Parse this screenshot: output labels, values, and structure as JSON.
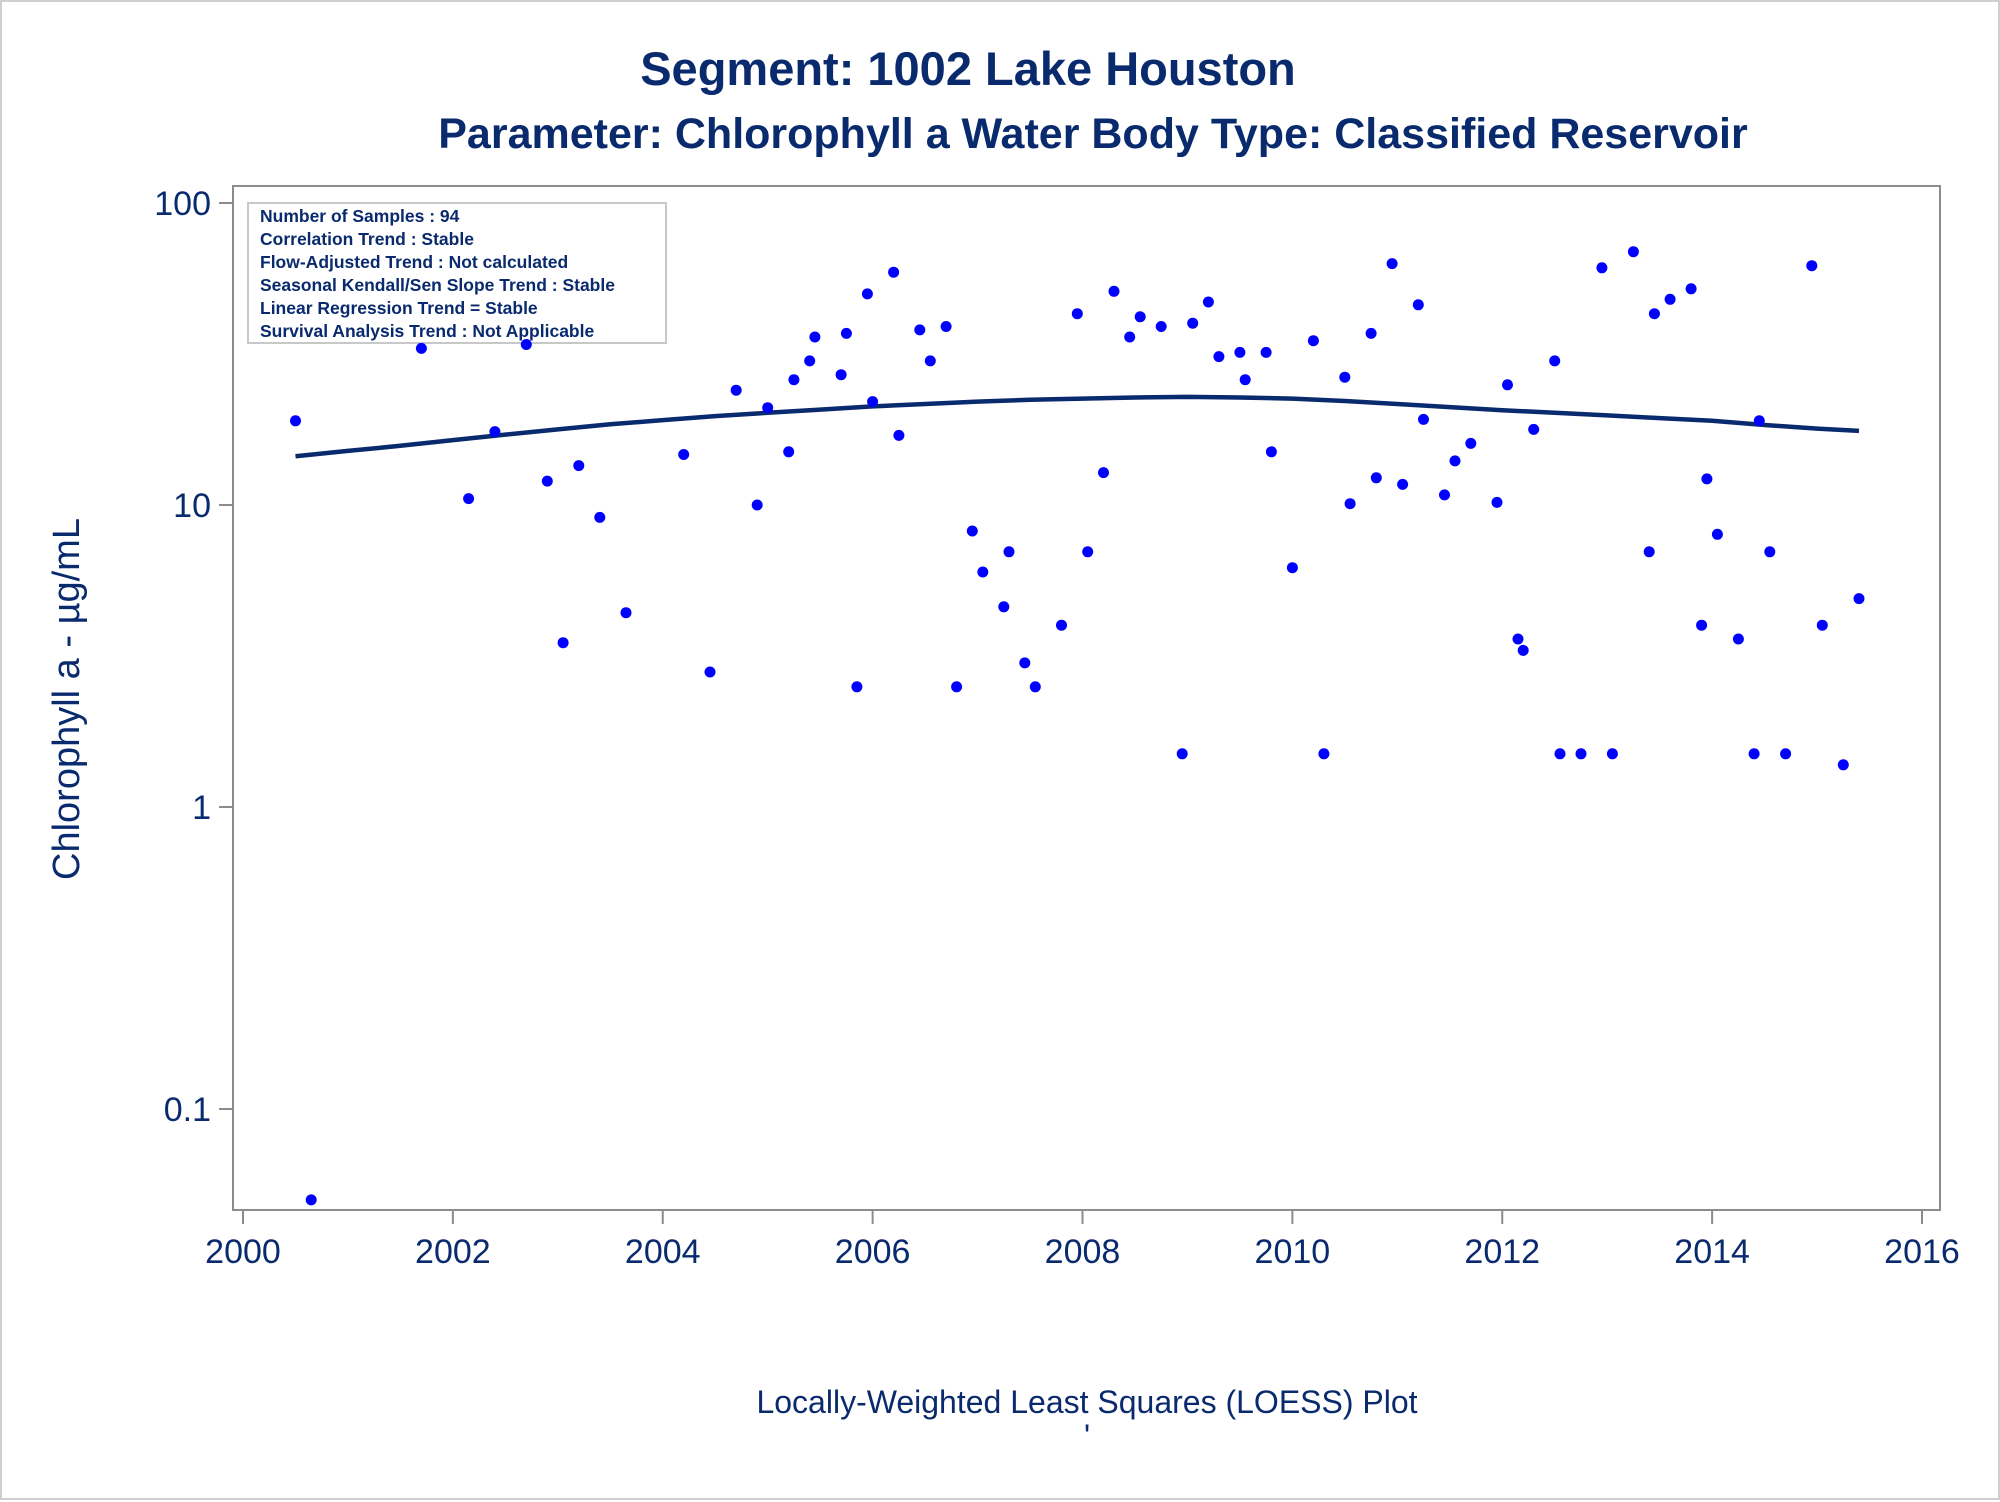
{
  "chart_data": {
    "type": "scatter",
    "title": "Segment: 1002  Lake Houston",
    "subtitle": "Parameter: Chlorophyll a   Water Body Type: Classified Reservoir",
    "xlabel": "",
    "ylabel": "Chlorophyll a -  µg/mL",
    "footnote": "Locally-Weighted Least Squares (LOESS) Plot",
    "footnote2": "'",
    "y_scale": "log",
    "xlim": [
      2000,
      2016
    ],
    "ylim": [
      0.05,
      100
    ],
    "x_ticks": [
      2000,
      2002,
      2004,
      2006,
      2008,
      2010,
      2012,
      2014,
      2016
    ],
    "x_tick_labels": [
      "2000",
      "2002",
      "2004",
      "2006",
      "2008",
      "2010",
      "2012",
      "2014",
      "2016"
    ],
    "y_ticks": [
      0.1,
      1,
      10,
      100
    ],
    "y_tick_labels": [
      "0.1",
      "1",
      "10",
      "100"
    ],
    "grid": false,
    "stats_box": [
      "Number of Samples : 94",
      "Correlation Trend : Stable",
      "Flow-Adjusted Trend : Not calculated",
      "Seasonal Kendall/Sen Slope Trend : Stable",
      "Linear Regression Trend = Stable",
      "Survival Analysis Trend : Not Applicable"
    ],
    "stats_box_placement": "top-left",
    "colors": {
      "points": "#0000ff",
      "loess": "#0a2a6e",
      "text": "#0a2a6e",
      "axes": "#8c8c8c"
    },
    "points": [
      [
        2000.5,
        19
      ],
      [
        2000.65,
        0.05
      ],
      [
        2001.7,
        33
      ],
      [
        2002.15,
        10.5
      ],
      [
        2002.4,
        17.5
      ],
      [
        2002.7,
        34
      ],
      [
        2002.9,
        12
      ],
      [
        2003.05,
        3.5
      ],
      [
        2003.2,
        13.5
      ],
      [
        2003.4,
        9.1
      ],
      [
        2003.65,
        4.4
      ],
      [
        2004.2,
        14.7
      ],
      [
        2004.45,
        2.8
      ],
      [
        2004.7,
        24
      ],
      [
        2004.9,
        10
      ],
      [
        2005.0,
        21
      ],
      [
        2005.2,
        15
      ],
      [
        2005.25,
        26
      ],
      [
        2005.4,
        30
      ],
      [
        2005.45,
        36
      ],
      [
        2005.7,
        27
      ],
      [
        2005.75,
        37
      ],
      [
        2005.85,
        2.5
      ],
      [
        2005.95,
        50
      ],
      [
        2006.0,
        22
      ],
      [
        2006.2,
        59
      ],
      [
        2006.25,
        17
      ],
      [
        2006.45,
        38
      ],
      [
        2006.55,
        30
      ],
      [
        2006.7,
        39
      ],
      [
        2006.8,
        2.5
      ],
      [
        2006.95,
        8.2
      ],
      [
        2007.05,
        6.0
      ],
      [
        2007.25,
        4.6
      ],
      [
        2007.3,
        7.0
      ],
      [
        2007.45,
        3.0
      ],
      [
        2007.55,
        2.5
      ],
      [
        2007.8,
        4.0
      ],
      [
        2007.95,
        43
      ],
      [
        2008.05,
        7.0
      ],
      [
        2008.2,
        12.8
      ],
      [
        2008.3,
        51
      ],
      [
        2008.45,
        36
      ],
      [
        2008.55,
        42
      ],
      [
        2008.75,
        39
      ],
      [
        2008.95,
        1.5
      ],
      [
        2009.05,
        40
      ],
      [
        2009.2,
        47
      ],
      [
        2009.3,
        31
      ],
      [
        2009.5,
        32
      ],
      [
        2009.55,
        26
      ],
      [
        2009.75,
        32
      ],
      [
        2009.8,
        15
      ],
      [
        2010.0,
        6.2
      ],
      [
        2010.2,
        35
      ],
      [
        2010.3,
        1.5
      ],
      [
        2010.5,
        26.5
      ],
      [
        2010.55,
        10.1
      ],
      [
        2010.75,
        37
      ],
      [
        2010.8,
        12.3
      ],
      [
        2010.95,
        63
      ],
      [
        2011.05,
        11.7
      ],
      [
        2011.2,
        46
      ],
      [
        2011.25,
        19.2
      ],
      [
        2011.45,
        10.8
      ],
      [
        2011.55,
        14
      ],
      [
        2011.7,
        16
      ],
      [
        2011.95,
        10.2
      ],
      [
        2012.05,
        25
      ],
      [
        2012.15,
        3.6
      ],
      [
        2012.2,
        3.3
      ],
      [
        2012.3,
        17.8
      ],
      [
        2012.5,
        30
      ],
      [
        2012.55,
        1.5
      ],
      [
        2012.75,
        1.5
      ],
      [
        2012.95,
        61
      ],
      [
        2013.05,
        1.5
      ],
      [
        2013.25,
        69
      ],
      [
        2013.4,
        7.0
      ],
      [
        2013.45,
        43
      ],
      [
        2013.6,
        48
      ],
      [
        2013.8,
        52
      ],
      [
        2013.9,
        4.0
      ],
      [
        2013.95,
        12.2
      ],
      [
        2014.05,
        8.0
      ],
      [
        2014.25,
        3.6
      ],
      [
        2014.4,
        1.5
      ],
      [
        2014.45,
        19
      ],
      [
        2014.55,
        7.0
      ],
      [
        2014.7,
        1.5
      ],
      [
        2014.95,
        62
      ],
      [
        2015.05,
        4.0
      ],
      [
        2015.25,
        1.38
      ],
      [
        2015.4,
        4.9
      ]
    ],
    "loess_curve": [
      [
        2000.5,
        14.5
      ],
      [
        2001.0,
        15.1
      ],
      [
        2001.5,
        15.7
      ],
      [
        2002.0,
        16.4
      ],
      [
        2002.5,
        17.1
      ],
      [
        2003.0,
        17.8
      ],
      [
        2003.5,
        18.5
      ],
      [
        2004.0,
        19.1
      ],
      [
        2004.5,
        19.7
      ],
      [
        2005.0,
        20.2
      ],
      [
        2005.5,
        20.7
      ],
      [
        2006.0,
        21.2
      ],
      [
        2006.5,
        21.6
      ],
      [
        2007.0,
        22.0
      ],
      [
        2007.5,
        22.3
      ],
      [
        2008.0,
        22.5
      ],
      [
        2008.5,
        22.7
      ],
      [
        2009.0,
        22.8
      ],
      [
        2009.5,
        22.7
      ],
      [
        2010.0,
        22.5
      ],
      [
        2010.5,
        22.1
      ],
      [
        2011.0,
        21.6
      ],
      [
        2011.5,
        21.1
      ],
      [
        2012.0,
        20.6
      ],
      [
        2012.5,
        20.2
      ],
      [
        2013.0,
        19.8
      ],
      [
        2013.5,
        19.4
      ],
      [
        2014.0,
        19.0
      ],
      [
        2014.5,
        18.4
      ],
      [
        2015.0,
        17.9
      ],
      [
        2015.4,
        17.6
      ]
    ]
  }
}
